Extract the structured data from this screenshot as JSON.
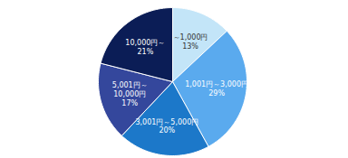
{
  "chart_data": {
    "type": "pie",
    "categories": [
      "～1,000円",
      "1,001円～3,000円",
      "3,001円～5,000円",
      "5,001円～\n10,000円",
      "10,000円～"
    ],
    "values": [
      13,
      29,
      20,
      17,
      21
    ],
    "value_labels": [
      "13%",
      "29%",
      "20%",
      "17%",
      "21%"
    ],
    "colors": [
      "#c3e5f8",
      "#5aaaee",
      "#1c78c9",
      "#34479c",
      "#0b1d56"
    ],
    "data_labels": true
  }
}
